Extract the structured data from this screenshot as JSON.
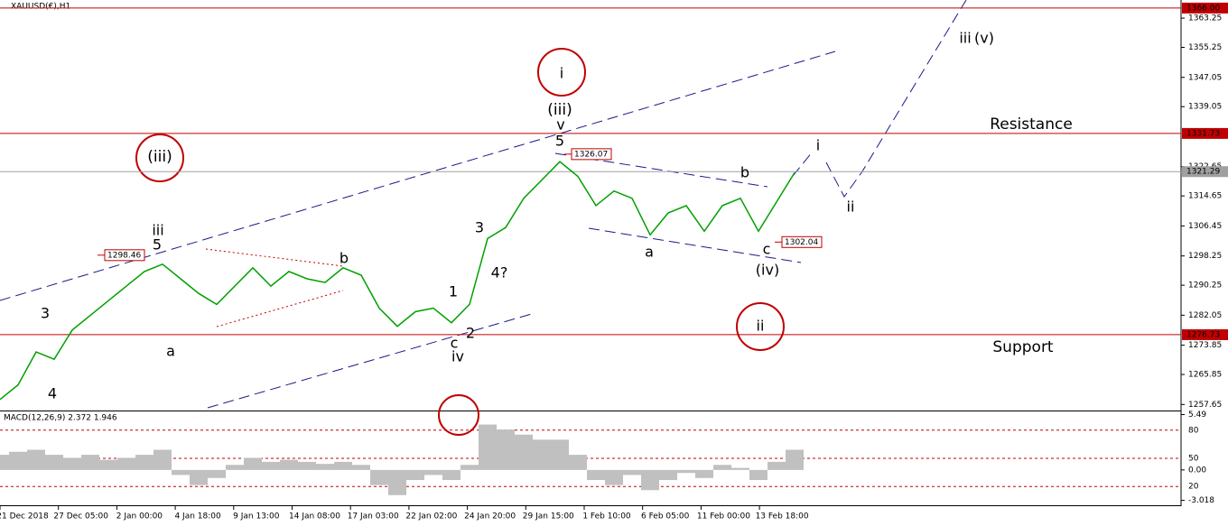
{
  "chart_data": {
    "type": "line",
    "title": "XAUUSD(€),H1",
    "series": [
      {
        "name": "XAUUSD",
        "color": "#00a000",
        "values": [
          1259,
          1263,
          1272,
          1270,
          1278,
          1282,
          1286,
          1290,
          1294,
          1296,
          1292,
          1288,
          1285,
          1290,
          1295,
          1290,
          1294,
          1292,
          1291,
          1295,
          1293,
          1284,
          1279,
          1283,
          1284,
          1280,
          1285,
          1303,
          1306,
          1314,
          1319,
          1324,
          1320,
          1312,
          1316,
          1314,
          1304,
          1310,
          1312,
          1305,
          1312,
          1314,
          1305,
          1313,
          1321
        ]
      }
    ],
    "ylim": [
      1256,
      1368.2
    ],
    "yticks": [
      1363.25,
      1355.25,
      1347.05,
      1339.05,
      1322.65,
      1314.65,
      1306.45,
      1298.25,
      1290.25,
      1282.05,
      1273.85,
      1265.85,
      1257.65
    ],
    "levels": [
      {
        "value": 1366,
        "label": "1366.00",
        "color": "#c00000"
      },
      {
        "value": 1331.73,
        "label": "1331.73",
        "color": "#c00000"
      },
      {
        "value": 1321.29,
        "label": "1321.29",
        "color": "#a0a0a0"
      },
      {
        "value": 1276.73,
        "label": "1276.73",
        "color": "#c00000"
      }
    ],
    "price_marks": [
      1326.07,
      1298.46,
      1302.04
    ],
    "x_labels": [
      "21 Dec 2018",
      "27 Dec 05:00",
      "2 Jan 00:00",
      "4 Jan 18:00",
      "9 Jan 13:00",
      "14 Jan 08:00",
      "17 Jan 03:00",
      "22 Jan 02:00",
      "24 Jan 20:00",
      "29 Jan 15:00",
      "1 Feb 10:00",
      "6 Feb 05:00",
      "11 Feb 00:00",
      "13 Feb 18:00"
    ],
    "annotations": [
      {
        "text": "(iii)",
        "color": "#1a1a8c"
      },
      {
        "text": "i",
        "color": "#8b5a2b"
      },
      {
        "text": "(iii)",
        "color": "#1a1a8c"
      },
      {
        "text": "v",
        "color": "#8b5a2b"
      },
      {
        "text": "5",
        "color": "#e020c0"
      },
      {
        "text": "iii",
        "color": "#8b5a2b"
      },
      {
        "text": "5",
        "color": "#e020c0"
      },
      {
        "text": "3",
        "color": "#e020c0"
      },
      {
        "text": "4",
        "color": "#e020c0"
      },
      {
        "text": "a",
        "color": "#e020c0"
      },
      {
        "text": "b",
        "color": "#e020c0"
      },
      {
        "text": "1",
        "color": "#e020c0"
      },
      {
        "text": "3",
        "color": "#e020c0"
      },
      {
        "text": "4?",
        "color": "#e020c0"
      },
      {
        "text": "c",
        "color": "#e020c0"
      },
      {
        "text": "2",
        "color": "#e020c0"
      },
      {
        "text": "iv",
        "color": "#8b5a2b"
      },
      {
        "text": "a",
        "color": "#8b5a2b"
      },
      {
        "text": "b",
        "color": "#8b5a2b"
      },
      {
        "text": "c",
        "color": "#8b5a2b"
      },
      {
        "text": "(iv)",
        "color": "#1a1a8c"
      },
      {
        "text": "i",
        "color": "#8b5a2b"
      },
      {
        "text": "ii",
        "color": "#8b5a2b"
      },
      {
        "text": "iii",
        "color": "#8b5a2b"
      },
      {
        "text": "(v)",
        "color": "#1a1a8c"
      },
      {
        "text": "ii",
        "color": "#8b5a2b"
      },
      {
        "text": "Resistance",
        "color": "#c00000"
      },
      {
        "text": "Support",
        "color": "#c00000"
      }
    ],
    "macd": {
      "title": "MACD(12,26,9) 2.372 1.946",
      "color": "#c0c0c0",
      "values": [
        1.5,
        1.8,
        2.0,
        1.5,
        1.2,
        1.5,
        1.0,
        1.2,
        1.5,
        2.0,
        -0.5,
        -1.5,
        -0.8,
        0.5,
        1.2,
        0.8,
        1.0,
        0.8,
        0.6,
        0.8,
        0.5,
        -1.5,
        -2.5,
        -1.0,
        -0.5,
        -1.0,
        0.5,
        4.5,
        4.0,
        3.5,
        3.0,
        3.0,
        1.5,
        -1.0,
        -1.5,
        -0.5,
        -2.0,
        -1.0,
        -0.3,
        -0.8,
        0.5,
        0.2,
        -1.0,
        0.8,
        2.0
      ],
      "ylim": [
        -3.5,
        5.8
      ],
      "yticks": [
        5.49,
        {
          "value": 0,
          "label": "0.00"
        },
        -3.018
      ],
      "levels_lim": [
        0,
        100
      ],
      "levels": [
        80,
        50,
        20
      ]
    }
  }
}
